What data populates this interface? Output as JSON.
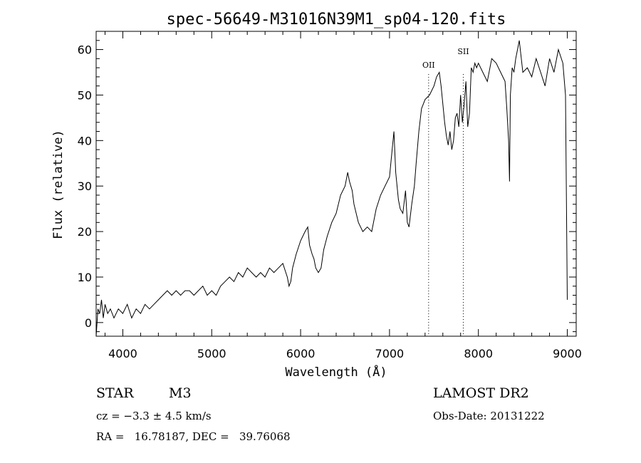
{
  "chart_data": {
    "type": "line",
    "title": "spec-56649-M31016N39M1_sp04-120.fits",
    "xlabel": "Wavelength (Å)",
    "ylabel": "Flux (relative)",
    "xlim": [
      3700,
      9100
    ],
    "ylim": [
      -3,
      64
    ],
    "xticks": [
      4000,
      5000,
      6000,
      7000,
      8000,
      9000
    ],
    "yticks": [
      0,
      10,
      20,
      30,
      40,
      50,
      60
    ],
    "grid": false,
    "line_color": "#000000",
    "annotations": [
      {
        "label": "OII",
        "x": 7440,
        "label_y": 56
      },
      {
        "label": "SII",
        "x": 7830,
        "label_y": 59
      }
    ],
    "series": [
      {
        "x": [
          3700,
          3720,
          3740,
          3760,
          3780,
          3800,
          3830,
          3860,
          3900,
          3950,
          4000,
          4050,
          4100,
          4150,
          4200,
          4250,
          4300,
          4350,
          4400,
          4450,
          4500,
          4550,
          4600,
          4650,
          4700,
          4750,
          4800,
          4850,
          4900,
          4950,
          5000,
          5050,
          5100,
          5150,
          5200,
          5250,
          5300,
          5350,
          5400,
          5450,
          5500,
          5550,
          5600,
          5650,
          5700,
          5750,
          5800,
          5850,
          5870,
          5890,
          5910,
          5950,
          6000,
          6050,
          6080,
          6100,
          6130,
          6150,
          6170,
          6200,
          6230,
          6260,
          6300,
          6350,
          6400,
          6450,
          6500,
          6530,
          6550,
          6580,
          6600,
          6650,
          6700,
          6750,
          6800,
          6850,
          6900,
          6950,
          7000,
          7030,
          7050,
          7070,
          7100,
          7120,
          7150,
          7180,
          7200,
          7220,
          7250,
          7280,
          7300,
          7330,
          7360,
          7400,
          7450,
          7500,
          7530,
          7560,
          7580,
          7600,
          7620,
          7640,
          7660,
          7680,
          7700,
          7720,
          7740,
          7760,
          7780,
          7800,
          7820,
          7840,
          7860,
          7880,
          7900,
          7920,
          7940,
          7960,
          7980,
          8000,
          8050,
          8100,
          8150,
          8200,
          8250,
          8300,
          8320,
          8340,
          8350,
          8360,
          8380,
          8400,
          8420,
          8440,
          8460,
          8500,
          8550,
          8600,
          8650,
          8700,
          8750,
          8800,
          8850,
          8900,
          8950,
          8980,
          9000
        ],
        "y": [
          -3,
          3,
          2,
          5,
          1,
          4,
          2,
          3,
          1,
          3,
          2,
          4,
          1,
          3,
          2,
          4,
          3,
          4,
          5,
          6,
          7,
          6,
          7,
          6,
          7,
          7,
          6,
          7,
          8,
          6,
          7,
          6,
          8,
          9,
          10,
          9,
          11,
          10,
          12,
          11,
          10,
          11,
          10,
          12,
          11,
          12,
          13,
          10,
          8,
          9,
          12,
          15,
          18,
          20,
          21,
          17,
          15,
          14,
          12,
          11,
          12,
          16,
          19,
          22,
          24,
          28,
          30,
          33,
          31,
          29,
          26,
          22,
          20,
          21,
          20,
          25,
          28,
          30,
          32,
          38,
          42,
          33,
          27,
          25,
          24,
          29,
          22,
          21,
          26,
          30,
          35,
          42,
          47,
          49,
          50,
          52,
          54,
          55,
          52,
          48,
          44,
          41,
          39,
          42,
          38,
          40,
          45,
          46,
          43,
          50,
          44,
          48,
          53,
          43,
          46,
          56,
          55,
          57,
          56,
          57,
          55,
          53,
          58,
          57,
          55,
          53,
          47,
          40,
          31,
          50,
          56,
          55,
          58,
          60,
          62,
          55,
          56,
          54,
          58,
          55,
          52,
          58,
          55,
          60,
          57,
          50,
          5
        ]
      }
    ]
  },
  "info": {
    "object_type": "STAR",
    "subclass": "M3",
    "cz": "cz = −3.3 ± 4.5 km/s",
    "coords": "RA =   16.78187, DEC =   39.76068",
    "survey": "LAMOST DR2",
    "obs_date": "Obs-Date: 20131222"
  }
}
